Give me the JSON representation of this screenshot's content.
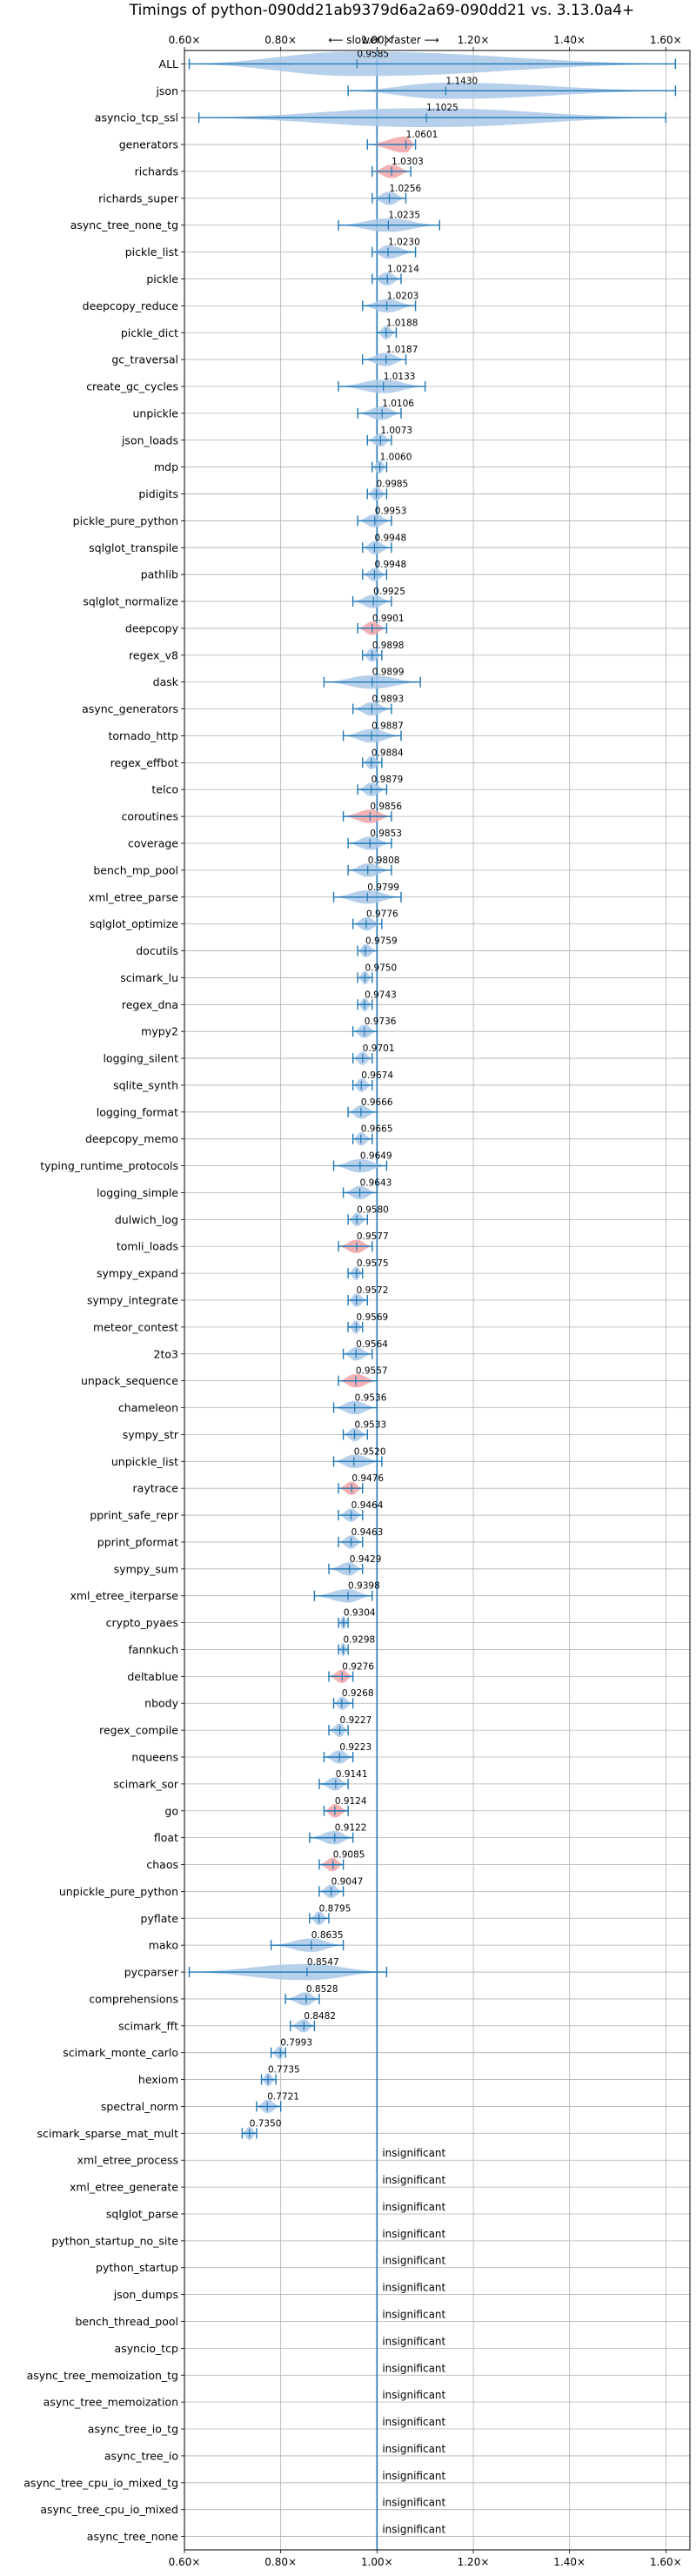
{
  "chart_data": {
    "type": "violin",
    "title": "Timings of python-090dd21ab9379d6a2a69-090dd21 vs. 3.13.0a4+",
    "subtitle": "⟵ slower | faster ⟶",
    "xlim": [
      0.6,
      1.65
    ],
    "x_ticks": [
      "0.60×",
      "0.80×",
      "1.00×",
      "1.20×",
      "1.40×",
      "1.60×"
    ],
    "grid": true,
    "reference_line": 1.0,
    "insignificant_label": "insignificant",
    "colors": {
      "faster": "#1f77b4",
      "slower": "#e8453c",
      "violin_fill": "#a9c8e8",
      "violin_fill_slower": "#f2a3a6",
      "line": "#1f77b4"
    },
    "benchmarks": [
      {
        "name": "ALL",
        "mean": 0.9585,
        "min": 0.61,
        "max": 1.62,
        "width": 0.9,
        "slower": false
      },
      {
        "name": "json",
        "mean": 1.143,
        "min": 0.94,
        "max": 1.62,
        "width": 0.6,
        "slower": false
      },
      {
        "name": "asyncio_tcp_ssl",
        "mean": 1.1025,
        "min": 0.63,
        "max": 1.6,
        "width": 0.7,
        "slower": false
      },
      {
        "name": "generators",
        "mean": 1.0601,
        "min": 0.98,
        "max": 1.08,
        "width": 0.6,
        "slower": true
      },
      {
        "name": "richards",
        "mean": 1.0303,
        "min": 0.99,
        "max": 1.07,
        "width": 0.5,
        "slower": true
      },
      {
        "name": "richards_super",
        "mean": 1.0256,
        "min": 0.99,
        "max": 1.06,
        "width": 0.5,
        "slower": false
      },
      {
        "name": "async_tree_none_tg",
        "mean": 1.0235,
        "min": 0.92,
        "max": 1.13,
        "width": 0.5,
        "slower": false
      },
      {
        "name": "pickle_list",
        "mean": 1.023,
        "min": 0.99,
        "max": 1.08,
        "width": 0.5,
        "slower": false
      },
      {
        "name": "pickle",
        "mean": 1.0214,
        "min": 0.99,
        "max": 1.05,
        "width": 0.5,
        "slower": false
      },
      {
        "name": "deepcopy_reduce",
        "mean": 1.0203,
        "min": 0.97,
        "max": 1.08,
        "width": 0.5,
        "slower": false
      },
      {
        "name": "pickle_dict",
        "mean": 1.0188,
        "min": 1.0,
        "max": 1.04,
        "width": 0.5,
        "slower": false
      },
      {
        "name": "gc_traversal",
        "mean": 1.0187,
        "min": 0.97,
        "max": 1.06,
        "width": 0.5,
        "slower": false
      },
      {
        "name": "create_gc_cycles",
        "mean": 1.0133,
        "min": 0.92,
        "max": 1.1,
        "width": 0.5,
        "slower": false
      },
      {
        "name": "unpickle",
        "mean": 1.0106,
        "min": 0.96,
        "max": 1.05,
        "width": 0.5,
        "slower": false
      },
      {
        "name": "json_loads",
        "mean": 1.0073,
        "min": 0.98,
        "max": 1.03,
        "width": 0.5,
        "slower": false
      },
      {
        "name": "mdp",
        "mean": 1.006,
        "min": 0.99,
        "max": 1.02,
        "width": 0.5,
        "slower": false
      },
      {
        "name": "pidigits",
        "mean": 0.9985,
        "min": 0.98,
        "max": 1.02,
        "width": 0.5,
        "slower": false
      },
      {
        "name": "pickle_pure_python",
        "mean": 0.9953,
        "min": 0.96,
        "max": 1.03,
        "width": 0.5,
        "slower": false
      },
      {
        "name": "sqlglot_transpile",
        "mean": 0.9948,
        "min": 0.97,
        "max": 1.03,
        "width": 0.5,
        "slower": false
      },
      {
        "name": "pathlib",
        "mean": 0.9948,
        "min": 0.97,
        "max": 1.02,
        "width": 0.5,
        "slower": false
      },
      {
        "name": "sqlglot_normalize",
        "mean": 0.9925,
        "min": 0.95,
        "max": 1.03,
        "width": 0.5,
        "slower": false
      },
      {
        "name": "deepcopy",
        "mean": 0.9901,
        "min": 0.96,
        "max": 1.02,
        "width": 0.5,
        "slower": true
      },
      {
        "name": "regex_v8",
        "mean": 0.9898,
        "min": 0.97,
        "max": 1.01,
        "width": 0.5,
        "slower": false
      },
      {
        "name": "dask",
        "mean": 0.9899,
        "min": 0.89,
        "max": 1.09,
        "width": 0.5,
        "slower": false
      },
      {
        "name": "async_generators",
        "mean": 0.9893,
        "min": 0.95,
        "max": 1.03,
        "width": 0.5,
        "slower": false
      },
      {
        "name": "tornado_http",
        "mean": 0.9887,
        "min": 0.93,
        "max": 1.05,
        "width": 0.5,
        "slower": false
      },
      {
        "name": "regex_effbot",
        "mean": 0.9884,
        "min": 0.97,
        "max": 1.01,
        "width": 0.5,
        "slower": false
      },
      {
        "name": "telco",
        "mean": 0.9879,
        "min": 0.96,
        "max": 1.02,
        "width": 0.5,
        "slower": false
      },
      {
        "name": "coroutines",
        "mean": 0.9856,
        "min": 0.93,
        "max": 1.03,
        "width": 0.5,
        "slower": true
      },
      {
        "name": "coverage",
        "mean": 0.9853,
        "min": 0.94,
        "max": 1.03,
        "width": 0.5,
        "slower": false
      },
      {
        "name": "bench_mp_pool",
        "mean": 0.9808,
        "min": 0.94,
        "max": 1.03,
        "width": 0.5,
        "slower": false
      },
      {
        "name": "xml_etree_parse",
        "mean": 0.9799,
        "min": 0.91,
        "max": 1.05,
        "width": 0.5,
        "slower": false
      },
      {
        "name": "sqlglot_optimize",
        "mean": 0.9776,
        "min": 0.95,
        "max": 1.01,
        "width": 0.5,
        "slower": false
      },
      {
        "name": "docutils",
        "mean": 0.9759,
        "min": 0.96,
        "max": 1.0,
        "width": 0.5,
        "slower": false
      },
      {
        "name": "scimark_lu",
        "mean": 0.975,
        "min": 0.96,
        "max": 0.99,
        "width": 0.5,
        "slower": false
      },
      {
        "name": "regex_dna",
        "mean": 0.9743,
        "min": 0.96,
        "max": 0.99,
        "width": 0.5,
        "slower": false
      },
      {
        "name": "mypy2",
        "mean": 0.9736,
        "min": 0.95,
        "max": 1.0,
        "width": 0.5,
        "slower": false
      },
      {
        "name": "logging_silent",
        "mean": 0.9701,
        "min": 0.95,
        "max": 0.99,
        "width": 0.5,
        "slower": false
      },
      {
        "name": "sqlite_synth",
        "mean": 0.9674,
        "min": 0.95,
        "max": 0.99,
        "width": 0.5,
        "slower": false
      },
      {
        "name": "logging_format",
        "mean": 0.9666,
        "min": 0.94,
        "max": 1.0,
        "width": 0.5,
        "slower": false
      },
      {
        "name": "deepcopy_memo",
        "mean": 0.9665,
        "min": 0.95,
        "max": 0.99,
        "width": 0.5,
        "slower": false
      },
      {
        "name": "typing_runtime_protocols",
        "mean": 0.9649,
        "min": 0.91,
        "max": 1.02,
        "width": 0.5,
        "slower": false
      },
      {
        "name": "logging_simple",
        "mean": 0.9643,
        "min": 0.93,
        "max": 1.0,
        "width": 0.5,
        "slower": false
      },
      {
        "name": "dulwich_log",
        "mean": 0.958,
        "min": 0.94,
        "max": 0.98,
        "width": 0.5,
        "slower": false
      },
      {
        "name": "tomli_loads",
        "mean": 0.9577,
        "min": 0.92,
        "max": 0.99,
        "width": 0.5,
        "slower": true
      },
      {
        "name": "sympy_expand",
        "mean": 0.9575,
        "min": 0.94,
        "max": 0.97,
        "width": 0.5,
        "slower": false
      },
      {
        "name": "sympy_integrate",
        "mean": 0.9572,
        "min": 0.94,
        "max": 0.98,
        "width": 0.5,
        "slower": false
      },
      {
        "name": "meteor_contest",
        "mean": 0.9569,
        "min": 0.94,
        "max": 0.97,
        "width": 0.5,
        "slower": false
      },
      {
        "name": "2to3",
        "mean": 0.9564,
        "min": 0.93,
        "max": 0.99,
        "width": 0.5,
        "slower": false
      },
      {
        "name": "unpack_sequence",
        "mean": 0.9557,
        "min": 0.92,
        "max": 1.0,
        "width": 0.5,
        "slower": true
      },
      {
        "name": "chameleon",
        "mean": 0.9536,
        "min": 0.91,
        "max": 1.0,
        "width": 0.5,
        "slower": false
      },
      {
        "name": "sympy_str",
        "mean": 0.9533,
        "min": 0.93,
        "max": 0.98,
        "width": 0.5,
        "slower": false
      },
      {
        "name": "unpickle_list",
        "mean": 0.952,
        "min": 0.91,
        "max": 1.01,
        "width": 0.5,
        "slower": false
      },
      {
        "name": "raytrace",
        "mean": 0.9476,
        "min": 0.92,
        "max": 0.97,
        "width": 0.5,
        "slower": true
      },
      {
        "name": "pprint_safe_repr",
        "mean": 0.9464,
        "min": 0.92,
        "max": 0.97,
        "width": 0.5,
        "slower": false
      },
      {
        "name": "pprint_pformat",
        "mean": 0.9463,
        "min": 0.92,
        "max": 0.97,
        "width": 0.5,
        "slower": false
      },
      {
        "name": "sympy_sum",
        "mean": 0.9429,
        "min": 0.9,
        "max": 0.97,
        "width": 0.5,
        "slower": false
      },
      {
        "name": "xml_etree_iterparse",
        "mean": 0.9398,
        "min": 0.87,
        "max": 0.99,
        "width": 0.5,
        "slower": false
      },
      {
        "name": "crypto_pyaes",
        "mean": 0.9304,
        "min": 0.92,
        "max": 0.94,
        "width": 0.5,
        "slower": false
      },
      {
        "name": "fannkuch",
        "mean": 0.9298,
        "min": 0.92,
        "max": 0.94,
        "width": 0.5,
        "slower": false
      },
      {
        "name": "deltablue",
        "mean": 0.9276,
        "min": 0.9,
        "max": 0.95,
        "width": 0.5,
        "slower": true
      },
      {
        "name": "nbody",
        "mean": 0.9268,
        "min": 0.91,
        "max": 0.95,
        "width": 0.5,
        "slower": false
      },
      {
        "name": "regex_compile",
        "mean": 0.9227,
        "min": 0.9,
        "max": 0.94,
        "width": 0.5,
        "slower": false
      },
      {
        "name": "nqueens",
        "mean": 0.9223,
        "min": 0.89,
        "max": 0.95,
        "width": 0.5,
        "slower": false
      },
      {
        "name": "scimark_sor",
        "mean": 0.9141,
        "min": 0.88,
        "max": 0.94,
        "width": 0.5,
        "slower": false
      },
      {
        "name": "go",
        "mean": 0.9124,
        "min": 0.89,
        "max": 0.94,
        "width": 0.5,
        "slower": true
      },
      {
        "name": "float",
        "mean": 0.9122,
        "min": 0.86,
        "max": 0.95,
        "width": 0.5,
        "slower": false
      },
      {
        "name": "chaos",
        "mean": 0.9085,
        "min": 0.88,
        "max": 0.93,
        "width": 0.5,
        "slower": true
      },
      {
        "name": "unpickle_pure_python",
        "mean": 0.9047,
        "min": 0.88,
        "max": 0.93,
        "width": 0.5,
        "slower": false
      },
      {
        "name": "pyflate",
        "mean": 0.8795,
        "min": 0.86,
        "max": 0.9,
        "width": 0.5,
        "slower": false
      },
      {
        "name": "mako",
        "mean": 0.8635,
        "min": 0.78,
        "max": 0.93,
        "width": 0.5,
        "slower": false
      },
      {
        "name": "pycparser",
        "mean": 0.8547,
        "min": 0.61,
        "max": 1.02,
        "width": 0.6,
        "slower": false
      },
      {
        "name": "comprehensions",
        "mean": 0.8528,
        "min": 0.81,
        "max": 0.88,
        "width": 0.5,
        "slower": false
      },
      {
        "name": "scimark_fft",
        "mean": 0.8482,
        "min": 0.82,
        "max": 0.87,
        "width": 0.5,
        "slower": false
      },
      {
        "name": "scimark_monte_carlo",
        "mean": 0.7993,
        "min": 0.78,
        "max": 0.81,
        "width": 0.5,
        "slower": false
      },
      {
        "name": "hexiom",
        "mean": 0.7735,
        "min": 0.76,
        "max": 0.79,
        "width": 0.5,
        "slower": false
      },
      {
        "name": "spectral_norm",
        "mean": 0.7721,
        "min": 0.75,
        "max": 0.8,
        "width": 0.5,
        "slower": false
      },
      {
        "name": "scimark_sparse_mat_mult",
        "mean": 0.735,
        "min": 0.72,
        "max": 0.75,
        "width": 0.5,
        "slower": false
      }
    ],
    "insignificant": [
      "xml_etree_process",
      "xml_etree_generate",
      "sqlglot_parse",
      "python_startup_no_site",
      "python_startup",
      "json_dumps",
      "bench_thread_pool",
      "asyncio_tcp",
      "async_tree_memoization_tg",
      "async_tree_memoization",
      "async_tree_io_tg",
      "async_tree_io",
      "async_tree_cpu_io_mixed_tg",
      "async_tree_cpu_io_mixed",
      "async_tree_none"
    ]
  }
}
